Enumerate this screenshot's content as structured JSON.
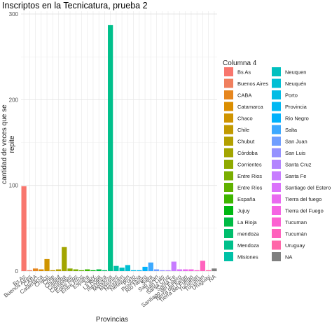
{
  "chart_data": {
    "type": "bar",
    "title": "Inscriptos en la Tecnicatura, prueba 2",
    "xlabel": "Provincias",
    "ylabel": "cantidad de veces que se repite",
    "ylim": [
      0,
      300
    ],
    "yticks": [
      0,
      100,
      200,
      300
    ],
    "grid": true,
    "legend_title": "Columna 4",
    "legend_position": "right",
    "categories": [
      "Bs As",
      "Buenos Aires",
      "CABA",
      "Catamarca",
      "Chaco",
      "Chile",
      "Chubut",
      "Córdoba",
      "Corrientes",
      "Entre Rios",
      "Entre Ríos",
      "España",
      "Jujuy",
      "La Rioja",
      "mendoza",
      "Mendoza",
      "Misiones",
      "Neuquen",
      "Neuquén",
      "Porto",
      "Provincia",
      "Rio Negro",
      "Salta",
      "San Juan",
      "San Luis",
      "Santa Cruz",
      "Santa Fe",
      "Santiago del Estero",
      "Tierra del fuego",
      "Tierra del Fuego",
      "Tucuman",
      "Tucumán",
      "Uruguay",
      "NA"
    ],
    "values": [
      99,
      1,
      3,
      2,
      14,
      1,
      2,
      28,
      3,
      2,
      1,
      2,
      1,
      2,
      1,
      287,
      6,
      4,
      7,
      1,
      1,
      5,
      10,
      2,
      1,
      1,
      11,
      2,
      2,
      2,
      1,
      12,
      1,
      3
    ],
    "colors": [
      "#F8766D",
      "#F07F5E",
      "#E6861E",
      "#DB8E00",
      "#CF9400",
      "#C29A00",
      "#B3A000",
      "#A3A500",
      "#8FAA00",
      "#7AAE00",
      "#60B200",
      "#3EB600",
      "#00B813",
      "#00BB44",
      "#00BE6C",
      "#00C08B",
      "#00C1A7",
      "#00C0BF",
      "#00BFD4",
      "#00BCE5",
      "#00B8F3",
      "#00B2FC",
      "#3DA9FF",
      "#709EFF",
      "#9591FF",
      "#B385FF",
      "#C77CFF",
      "#DA72FB",
      "#E96AF0",
      "#F564E3",
      "#FC61D2",
      "#FF62BD",
      "#FF66A8",
      "#7F7F7F"
    ],
    "legend_col1": [
      "Bs As",
      "Buenos Aires",
      "CABA",
      "Catamarca",
      "Chaco",
      "Chile",
      "Chubut",
      "Córdoba",
      "Corrientes",
      "Entre Rios",
      "Entre Ríos",
      "España",
      "Jujuy",
      "La Rioja",
      "mendoza",
      "Mendoza",
      "Misiones"
    ],
    "legend_col2": [
      "Neuquen",
      "Neuquén",
      "Porto",
      "Provincia",
      "Rio Negro",
      "Salta",
      "San Juan",
      "San Luis",
      "Santa Cruz",
      "Santa Fe",
      "Santiago del Estero",
      "Tierra del fuego",
      "Tierra del Fuego",
      "Tucuman",
      "Tucumán",
      "Uruguay",
      "NA"
    ]
  }
}
